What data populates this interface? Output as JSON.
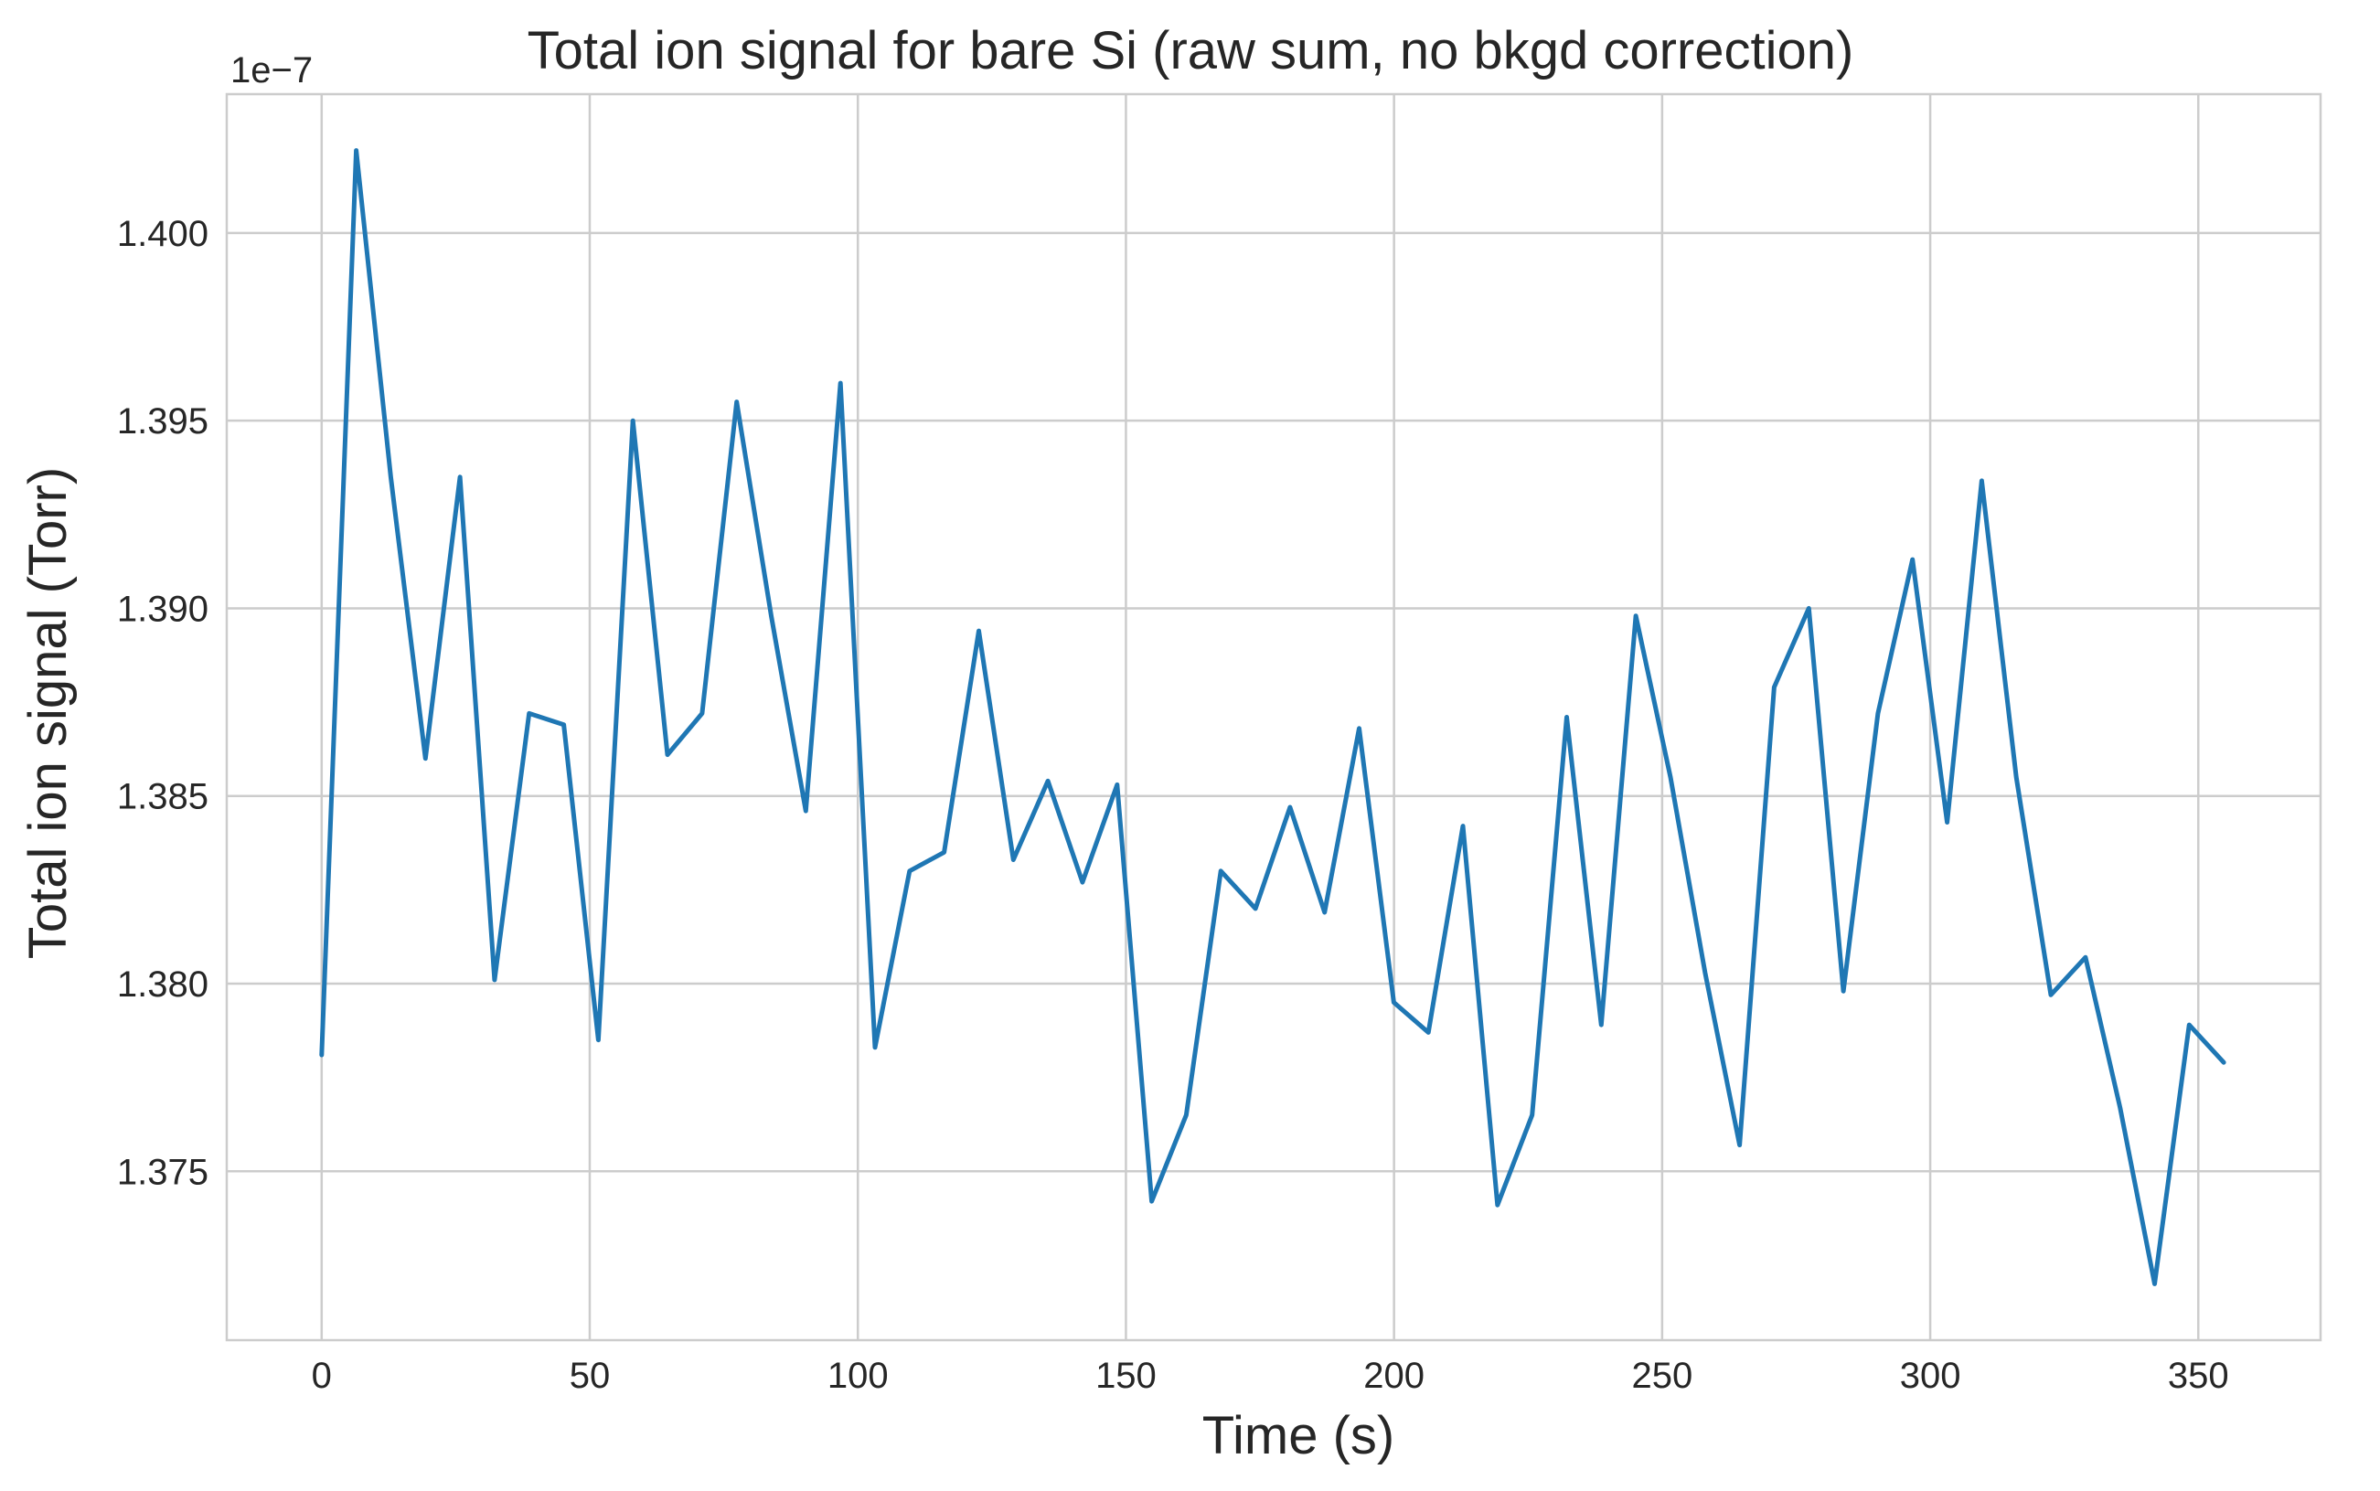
{
  "colors": {
    "series": "#1f77b4"
  },
  "chart_data": {
    "type": "line",
    "title": "Total ion signal for bare Si (raw sum, no bkgd correction)",
    "xlabel": "Time (s)",
    "ylabel": "Total ion signal (Torr)",
    "y_offset_label": "1e−7",
    "xlim": [
      -17.7,
      372.8
    ],
    "ylim": [
      1.3705,
      1.4037
    ],
    "x_ticks": [
      0,
      50,
      100,
      150,
      200,
      250,
      300,
      350
    ],
    "x_tick_labels": [
      "0",
      "50",
      "100",
      "150",
      "200",
      "250",
      "300",
      "350"
    ],
    "y_ticks": [
      1.375,
      1.38,
      1.385,
      1.39,
      1.395,
      1.4
    ],
    "y_tick_labels": [
      "1.375",
      "1.380",
      "1.385",
      "1.390",
      "1.395",
      "1.400"
    ],
    "grid": true,
    "series": [
      {
        "x": [
          0,
          6.45,
          12.9,
          19.35,
          25.8,
          32.25,
          38.7,
          45.15,
          51.6,
          58.05,
          64.5,
          70.95,
          77.4,
          83.85,
          90.3,
          96.75,
          103.2,
          109.65,
          116.1,
          122.55,
          129,
          135.45,
          141.9,
          148.35,
          154.8,
          161.25,
          167.7,
          174.15,
          180.6,
          187.05,
          193.5,
          199.95,
          206.4,
          212.85,
          219.3,
          225.75,
          232.2,
          238.65,
          245.1,
          251.55,
          258,
          264.45,
          270.9,
          277.35,
          283.8,
          290.25,
          296.7,
          303.15,
          309.6,
          316.05,
          322.5,
          328.95,
          335.4,
          341.85,
          348.3,
          354.75
        ],
        "values": [
          1.3781,
          1.4022,
          1.3935,
          1.386,
          1.3935,
          1.3801,
          1.3872,
          1.3869,
          1.3785,
          1.395,
          1.3861,
          1.3872,
          1.3955,
          1.3898,
          1.3846,
          1.396,
          1.3783,
          1.383,
          1.3835,
          1.3894,
          1.3833,
          1.3854,
          1.3827,
          1.3853,
          1.3742,
          1.3765,
          1.383,
          1.382,
          1.3847,
          1.3819,
          1.3868,
          1.3795,
          1.3787,
          1.3842,
          1.3741,
          1.3765,
          1.3871,
          1.3789,
          1.3898,
          1.3855,
          1.3803,
          1.3757,
          1.3879,
          1.39,
          1.3798,
          1.3872,
          1.3913,
          1.3843,
          1.3934,
          1.3855,
          1.3797,
          1.3807,
          1.3767,
          1.372,
          1.3789,
          1.3779
        ]
      }
    ]
  }
}
